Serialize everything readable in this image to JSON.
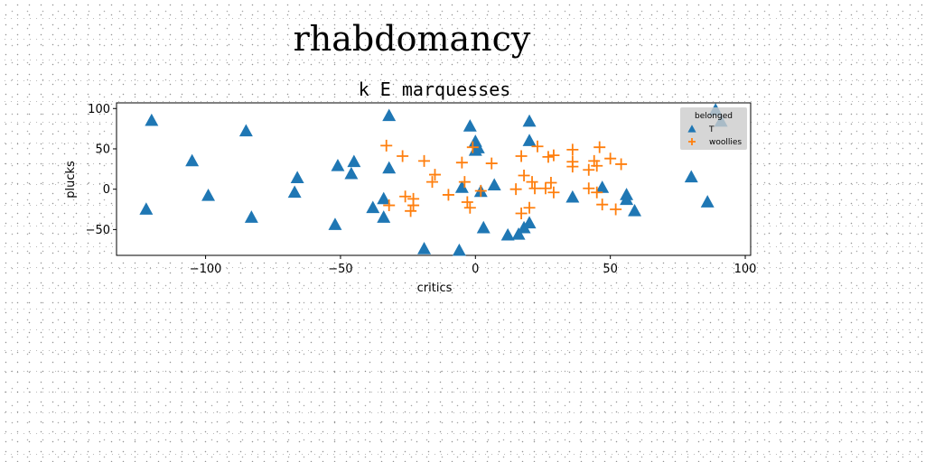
{
  "chart_data": {
    "type": "scatter",
    "suptitle": "rhabdomancy",
    "title": "k E marquesses",
    "xlabel": "critics",
    "ylabel": "plucks",
    "xlim": [
      -133,
      102
    ],
    "ylim": [
      -82,
      107
    ],
    "xticks": [
      -100,
      -50,
      0,
      50,
      100
    ],
    "yticks": [
      -50,
      0,
      50,
      100
    ],
    "grid": false,
    "legend": {
      "title": "belonged",
      "placement": "top-right"
    },
    "series": [
      {
        "name": "T",
        "marker": "triangle",
        "color": "#1f77b4",
        "points": [
          [
            -120,
            85
          ],
          [
            -122,
            -25
          ],
          [
            -105,
            35
          ],
          [
            -99,
            -8
          ],
          [
            -85,
            72
          ],
          [
            -83,
            -35
          ],
          [
            -66,
            14
          ],
          [
            -67,
            -4
          ],
          [
            -51,
            29
          ],
          [
            -52,
            -44
          ],
          [
            -46,
            19
          ],
          [
            -45,
            34
          ],
          [
            -38,
            -23
          ],
          [
            -34,
            -12
          ],
          [
            -34,
            -35
          ],
          [
            -32,
            26
          ],
          [
            -32,
            91
          ],
          [
            -19,
            -74
          ],
          [
            -6,
            -76
          ],
          [
            -5,
            2
          ],
          [
            -2,
            78
          ],
          [
            0,
            59
          ],
          [
            0,
            48
          ],
          [
            1,
            51
          ],
          [
            2,
            -3
          ],
          [
            3,
            -48
          ],
          [
            7,
            5
          ],
          [
            12,
            -57
          ],
          [
            16,
            -56
          ],
          [
            18,
            -48
          ],
          [
            20,
            -42
          ],
          [
            20,
            84
          ],
          [
            20,
            60
          ],
          [
            36,
            -10
          ],
          [
            47,
            2
          ],
          [
            56,
            -7
          ],
          [
            56,
            -13
          ],
          [
            59,
            -27
          ],
          [
            80,
            15
          ],
          [
            86,
            -16
          ],
          [
            89,
            98
          ],
          [
            91,
            84
          ]
        ]
      },
      {
        "name": "woollies",
        "marker": "plus",
        "color": "#ff7f0e",
        "points": [
          [
            -33,
            54
          ],
          [
            -32,
            -20
          ],
          [
            -27,
            41
          ],
          [
            -26,
            -9
          ],
          [
            -24,
            -27
          ],
          [
            -23,
            -20
          ],
          [
            -23,
            -12
          ],
          [
            -19,
            35
          ],
          [
            -16,
            9
          ],
          [
            -15,
            18
          ],
          [
            -10,
            -7
          ],
          [
            -5,
            33
          ],
          [
            -4,
            9
          ],
          [
            -3,
            -16
          ],
          [
            -2,
            -23
          ],
          [
            -1,
            52
          ],
          [
            2,
            -2
          ],
          [
            6,
            32
          ],
          [
            15,
            0
          ],
          [
            17,
            41
          ],
          [
            17,
            -30
          ],
          [
            18,
            17
          ],
          [
            20,
            -23
          ],
          [
            21,
            9
          ],
          [
            22,
            1
          ],
          [
            23,
            53
          ],
          [
            26,
            1
          ],
          [
            27,
            40
          ],
          [
            28,
            8
          ],
          [
            29,
            42
          ],
          [
            29,
            -4
          ],
          [
            36,
            49
          ],
          [
            36,
            28
          ],
          [
            36,
            34
          ],
          [
            42,
            1
          ],
          [
            42,
            24
          ],
          [
            44,
            35
          ],
          [
            45,
            29
          ],
          [
            45,
            -4
          ],
          [
            46,
            52
          ],
          [
            47,
            -19
          ],
          [
            50,
            38
          ],
          [
            52,
            -25
          ],
          [
            54,
            31
          ]
        ]
      }
    ]
  }
}
